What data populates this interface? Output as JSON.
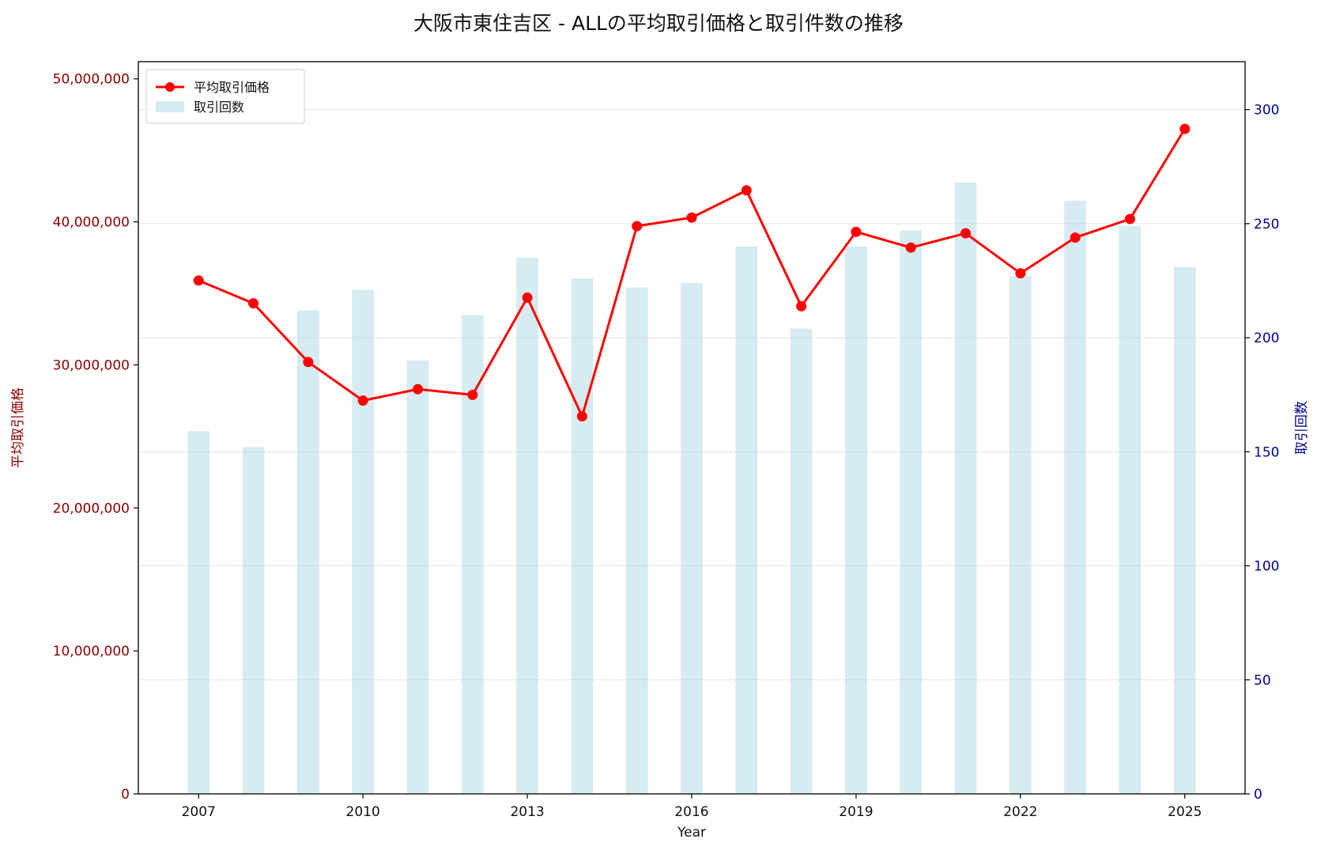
{
  "chart_data": {
    "type": "bar+line",
    "title": "大阪市東住吉区 - ALLの平均取引価格と取引件数の推移",
    "xlabel": "Year",
    "ylabel_left": "平均取引価格",
    "ylabel_right": "取引回数",
    "x": [
      2007,
      2008,
      2009,
      2010,
      2011,
      2012,
      2013,
      2014,
      2015,
      2016,
      2017,
      2018,
      2019,
      2020,
      2021,
      2022,
      2023,
      2024,
      2025
    ],
    "x_ticks": [
      "2007",
      "2010",
      "2013",
      "2016",
      "2019",
      "2022",
      "2025"
    ],
    "ylim_left": [
      0,
      51200000
    ],
    "yticks_left": [
      "0",
      "10,000,000",
      "20,000,000",
      "30,000,000",
      "40,000,000",
      "50,000,000"
    ],
    "ylim_right": [
      0,
      321
    ],
    "yticks_right": [
      "0",
      "50",
      "100",
      "150",
      "200",
      "250",
      "300"
    ],
    "grid": true,
    "legend_position": "top-left",
    "series": [
      {
        "name": "平均取引価格",
        "type": "line",
        "axis": "left",
        "color": "#ff0000",
        "values": [
          35900000,
          34300000,
          30200000,
          27500000,
          28300000,
          27900000,
          34700000,
          26400000,
          39700000,
          40300000,
          42200000,
          34100000,
          39300000,
          38200000,
          39200000,
          36400000,
          38900000,
          40200000,
          46500000
        ]
      },
      {
        "name": "取引回数",
        "type": "bar",
        "axis": "right",
        "color": "#add8e6",
        "values": [
          159,
          152,
          212,
          221,
          190,
          210,
          235,
          226,
          222,
          224,
          240,
          204,
          240,
          247,
          268,
          227,
          260,
          249,
          231
        ]
      }
    ],
    "colors": {
      "left_axis": "#8b0000",
      "right_axis": "#00008b"
    }
  }
}
